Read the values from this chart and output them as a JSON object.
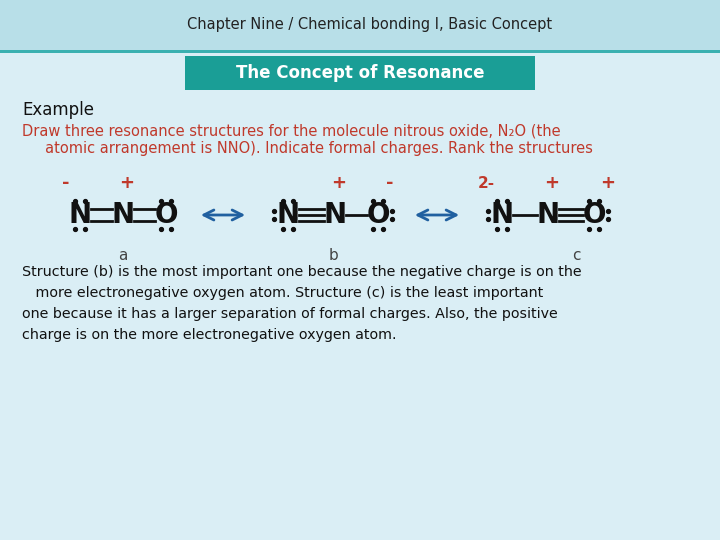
{
  "title": "Chapter Nine / Chemical bonding I, Basic Concept",
  "subtitle": "The Concept of Resonance",
  "subtitle_bg": "#1a9e96",
  "header_bg": "#b8dfe8",
  "header_gradient_top": "#c5e8f0",
  "header_gradient_bot": "#9fcfdc",
  "example_label": "Example",
  "draw_text_line1": "Draw three resonance structures for the molecule nitrous oxide, N₂O (the",
  "draw_text_line2": "     atomic arrangement is NNO). Indicate formal charges. Rank the structures",
  "draw_color": "#c0392b",
  "body_bg_top": "#d5eef5",
  "body_bg_bot": "#e8f6fa",
  "bottom_text_1": "Structure (b) is the most important one because the negative charge is on the",
  "bottom_text_2": "   more electronegative oxygen atom. Structure (c) is the least important",
  "bottom_text_3": "one because it has a larger separation of formal charges. Also, the positive",
  "bottom_text_4": "charge is on the more electronegative oxygen atom.",
  "label_color": "#444444",
  "charge_color": "#c0392b",
  "atom_color": "#111111",
  "bond_color": "#111111",
  "arrow_color": "#2060a0"
}
